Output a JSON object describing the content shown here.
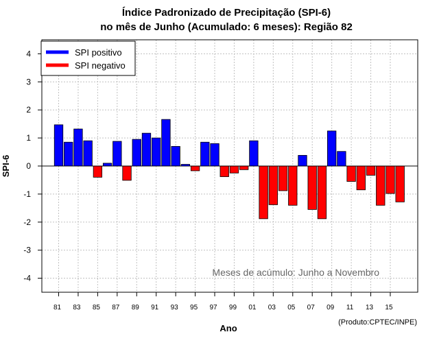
{
  "chart_data": {
    "type": "bar",
    "title_line1": "Índice Padronizado de Precipitação (SPI-6)",
    "title_line2": "no mês de Junho (Acumulado: 6 meses): Região 82",
    "xlabel": "Ano",
    "ylabel": "SPI-6",
    "ylim": [
      -4.5,
      4.5
    ],
    "yticks": [
      -4,
      -3,
      -2,
      -1,
      0,
      1,
      2,
      3,
      4
    ],
    "x_tick_labels": [
      "81",
      "83",
      "85",
      "87",
      "89",
      "91",
      "93",
      "95",
      "97",
      "99",
      "01",
      "03",
      "05",
      "07",
      "09",
      "11",
      "13",
      "15"
    ],
    "categories": [
      "1981",
      "1982",
      "1983",
      "1984",
      "1985",
      "1986",
      "1987",
      "1988",
      "1989",
      "1990",
      "1991",
      "1992",
      "1993",
      "1994",
      "1995",
      "1996",
      "1997",
      "1998",
      "1999",
      "2000",
      "2001",
      "2002",
      "2003",
      "2004",
      "2005",
      "2006",
      "2007",
      "2008",
      "2009",
      "2010",
      "2011",
      "2012",
      "2013",
      "2014",
      "2015",
      "2016"
    ],
    "values": [
      1.47,
      0.85,
      1.32,
      0.9,
      -0.4,
      0.1,
      0.88,
      -0.51,
      0.95,
      1.17,
      1.0,
      1.66,
      0.7,
      0.06,
      -0.17,
      0.85,
      0.8,
      -0.38,
      -0.25,
      -0.13,
      0.9,
      -1.88,
      -1.38,
      -0.88,
      -1.4,
      0.38,
      -1.55,
      -1.88,
      1.25,
      0.52,
      -0.55,
      -0.85,
      -0.33,
      -1.4,
      -0.98,
      -1.28
    ],
    "legend": [
      {
        "label": "SPI positivo",
        "color": "#0000ff"
      },
      {
        "label": "SPI negativo",
        "color": "#ff0000"
      }
    ],
    "legend_position": "top-left",
    "annotation": "Meses de acúmulo: Junho a Novembro",
    "credit": "(Produto:CPTEC/INPE)",
    "grid": true,
    "colors": {
      "positive": "#0000ff",
      "negative": "#ff0000",
      "grid": "#c0c0c0"
    }
  }
}
